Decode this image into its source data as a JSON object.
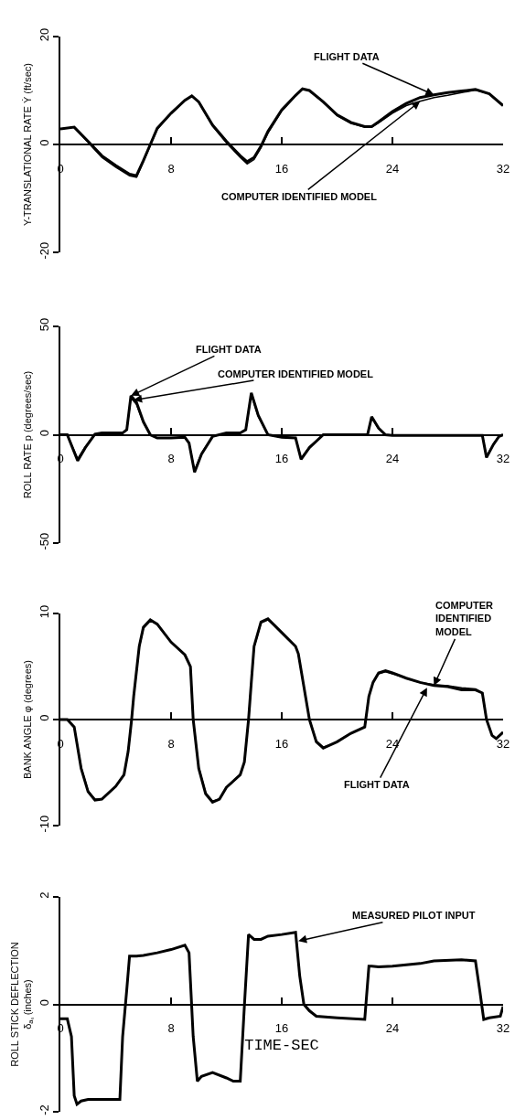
{
  "chart_data": [
    {
      "type": "line",
      "ylabel": "Y-TRANSLATIONAL RATE Ẏ (ft/sec)",
      "xlim": [
        0,
        32
      ],
      "ylim": [
        -20,
        20
      ],
      "xticks": [
        0,
        8,
        16,
        24,
        32
      ],
      "yticks": [
        -20,
        0,
        20
      ],
      "x": [
        0,
        1,
        2,
        3,
        4,
        5,
        5.5,
        6,
        6.5,
        7,
        8,
        9,
        9.5,
        10,
        11,
        12,
        13,
        13.5,
        14,
        14.5,
        15,
        16,
        17,
        17.5,
        18,
        19,
        20,
        21,
        22,
        22.5,
        23,
        24,
        25,
        26,
        27,
        28,
        29,
        30,
        31,
        32
      ],
      "series": [
        {
          "color": "#000000",
          "values": [
            2.9,
            3.2,
            0.6,
            -2.1,
            -3.9,
            -5.5,
            -5.8,
            -3,
            0,
            3,
            5.8,
            8.2,
            9,
            7.9,
            3.6,
            0.6,
            -2.1,
            -3.2,
            -2.4,
            -0.3,
            2.4,
            6.4,
            9.1,
            10.3,
            10,
            7.9,
            5.5,
            4.1,
            3.3,
            3.3,
            4.2,
            6.1,
            7.6,
            8.7,
            9.2,
            9.6,
            9.9,
            10.2,
            9.4,
            7.2
          ]
        },
        {
          "color": "#000000",
          "values": [
            2.9,
            3.2,
            0.4,
            -2.4,
            -4.2,
            -5.8,
            -6.1,
            -3.2,
            -0.2,
            2.8,
            5.7,
            8.1,
            9,
            7.8,
            3.4,
            0.3,
            -2.4,
            -3.6,
            -2.8,
            -0.6,
            2.1,
            6.2,
            9,
            10.2,
            10,
            7.8,
            5.3,
            3.9,
            3.2,
            3.2,
            4,
            5.8,
            7.2,
            8,
            8.7,
            9.1,
            9.6,
            10.1,
            9.4,
            7.2
          ]
        }
      ],
      "annotations": [
        {
          "text": "FLIGHT DATA",
          "x": 27,
          "y": 9.2
        },
        {
          "text": "COMPUTER IDENTIFIED MODEL",
          "x": 26,
          "y": 8
        }
      ]
    },
    {
      "type": "line",
      "ylabel": "ROLL RATE p (degrees/sec)",
      "xlim": [
        0,
        32
      ],
      "ylim": [
        -50,
        50
      ],
      "xticks": [
        0,
        8,
        16,
        24,
        32
      ],
      "yticks": [
        -50,
        0,
        50
      ],
      "x": [
        0,
        0.5,
        1.25,
        1.8,
        2.5,
        3,
        4,
        4.5,
        4.8,
        5.1,
        5.5,
        6,
        6.5,
        7,
        8,
        9,
        9.3,
        9.7,
        10.2,
        11,
        12,
        13,
        13.4,
        13.8,
        14.3,
        15,
        16,
        17,
        17.4,
        18,
        19,
        22,
        22.2,
        22.5,
        23,
        23.5,
        24,
        30,
        30.5,
        30.8,
        31.3,
        31.7,
        32
      ],
      "series": [
        {
          "color": "#000000",
          "values": [
            0,
            0,
            -12,
            -6,
            0.3,
            0.8,
            0.8,
            0.8,
            2.3,
            18,
            15,
            6,
            0,
            -1.5,
            -1.5,
            -1.2,
            -3.8,
            -17.3,
            -9,
            -0.8,
            0.8,
            0.8,
            2.3,
            19.3,
            9,
            0,
            -1.2,
            -1.5,
            -11.3,
            -6,
            0,
            0,
            0,
            8.3,
            3,
            0,
            -0.3,
            -0.3,
            -0.3,
            -10.5,
            -4.5,
            -0.8,
            0
          ]
        },
        {
          "color": "#000000",
          "values": [
            0,
            0,
            -11,
            -5.5,
            0.3,
            0.8,
            0.8,
            0.8,
            2.3,
            17,
            14,
            5.5,
            0,
            -1.5,
            -1.5,
            -1.2,
            -3.8,
            -16.5,
            -8.5,
            -0.8,
            0.8,
            0.8,
            2.3,
            18.5,
            8.5,
            0,
            -1.2,
            -1.5,
            -10.8,
            -5.5,
            0,
            0,
            0,
            7.8,
            2.8,
            0,
            -0.3,
            -0.3,
            -0.3,
            -10,
            -4.2,
            -0.8,
            0
          ]
        }
      ],
      "annotations": [
        {
          "text": "FLIGHT DATA",
          "x": 5.1,
          "y": 18
        },
        {
          "text": "COMPUTER IDENTIFIED MODEL",
          "x": 5.3,
          "y": 16
        }
      ]
    },
    {
      "type": "line",
      "ylabel": "BANK ANGLE φ (degrees)",
      "xlim": [
        0,
        32
      ],
      "ylim": [
        -10,
        10
      ],
      "xticks": [
        0,
        8,
        16,
        24,
        32
      ],
      "yticks": [
        -10,
        0,
        10
      ],
      "x": [
        0,
        0.5,
        1,
        1.5,
        2,
        2.5,
        3,
        4,
        4.6,
        4.9,
        5.15,
        5.3,
        5.7,
        6,
        6.5,
        7,
        8,
        9,
        9.4,
        9.6,
        10,
        10.5,
        11,
        11.5,
        12,
        13,
        13.3,
        13.6,
        13.8,
        14,
        14.5,
        15,
        16,
        17,
        17.2,
        17.6,
        18,
        18.5,
        19,
        20,
        21,
        22,
        22.3,
        22.6,
        23,
        23.5,
        24,
        25,
        26,
        27,
        28,
        29,
        30,
        30.5,
        30.8,
        31.2,
        31.5,
        32
      ],
      "series": [
        {
          "color": "#000000",
          "values": [
            0,
            0,
            -0.7,
            -4.6,
            -6.8,
            -7.6,
            -7.5,
            -6.3,
            -5.2,
            -3,
            0,
            2.2,
            6.9,
            8.7,
            9.4,
            9,
            7.3,
            6.1,
            5,
            0,
            -4.6,
            -7,
            -7.8,
            -7.5,
            -6.4,
            -5.2,
            -4,
            0,
            3.5,
            6.9,
            9.2,
            9.5,
            8.2,
            6.9,
            6.2,
            3.1,
            0,
            -2.1,
            -2.7,
            -2.1,
            -1.3,
            -0.7,
            2.2,
            3.5,
            4.4,
            4.6,
            4.4,
            3.9,
            3.5,
            3.2,
            3.1,
            2.8,
            2.8,
            2.5,
            0,
            -1.5,
            -1.8,
            -1.2
          ]
        },
        {
          "color": "#000000",
          "values": [
            0,
            0,
            -0.7,
            -4.5,
            -6.7,
            -7.5,
            -7.5,
            -6.3,
            -5.2,
            -3,
            0,
            2.2,
            6.8,
            8.6,
            9.3,
            9,
            7.3,
            6.1,
            5,
            0,
            -4.5,
            -6.9,
            -7.7,
            -7.5,
            -6.4,
            -5.2,
            -4,
            0,
            3.5,
            6.8,
            9.1,
            9.4,
            8.2,
            6.9,
            6.2,
            3.1,
            0,
            -2,
            -2.6,
            -2.1,
            -1.3,
            -0.7,
            2.2,
            3.5,
            4.3,
            4.5,
            4.3,
            3.9,
            3.5,
            3.3,
            3.2,
            3,
            2.9,
            2.5,
            0,
            -1.5,
            -1.8,
            -1.2
          ]
        }
      ],
      "annotations": [
        {
          "text": "COMPUTER\nIDENTIFIED\nMODEL",
          "x": 27,
          "y": 3.2
        },
        {
          "text": "FLIGHT DATA",
          "x": 26.5,
          "y": 3
        }
      ]
    },
    {
      "type": "line",
      "ylabel": "ROLL STICK DEFLECTION\nδ$_{aₛ}$ (inches)",
      "xlabel": "TIME-SEC",
      "xlim": [
        0,
        32
      ],
      "ylim": [
        -2,
        2
      ],
      "xticks": [
        0,
        8,
        16,
        24,
        32
      ],
      "yticks": [
        -2,
        0,
        2
      ],
      "x": [
        0,
        0.5,
        0.8,
        1,
        1.2,
        1.5,
        2,
        3,
        4,
        4.3,
        4.5,
        4.8,
        5,
        5.5,
        6,
        7,
        8,
        9,
        9.3,
        9.6,
        9.9,
        10.2,
        11,
        12,
        12.5,
        13,
        13.3,
        13.6,
        14,
        14.5,
        15,
        16,
        17,
        17.3,
        17.6,
        18,
        18.5,
        20,
        22,
        22.3,
        22.5,
        23,
        24,
        26,
        27,
        29,
        30,
        30.3,
        30.6,
        31,
        31.8,
        32
      ],
      "series": [
        {
          "color": "#000000",
          "values": [
            -0.27,
            -0.27,
            -0.6,
            -1.7,
            -1.86,
            -1.8,
            -1.77,
            -1.77,
            -1.77,
            -1.77,
            -0.6,
            0.28,
            0.9,
            0.9,
            0.91,
            0.96,
            1.02,
            1.1,
            0.96,
            -0.6,
            -1.43,
            -1.34,
            -1.27,
            -1.37,
            -1.43,
            -1.43,
            -0.03,
            1.3,
            1.21,
            1.21,
            1.27,
            1.3,
            1.34,
            0.53,
            0,
            -0.12,
            -0.22,
            -0.25,
            -0.28,
            0.71,
            0.71,
            0.7,
            0.71,
            0.76,
            0.81,
            0.83,
            0.81,
            0.28,
            -0.28,
            -0.25,
            -0.22,
            -0.04
          ]
        }
      ],
      "annotations": [
        {
          "text": "MEASURED PILOT INPUT",
          "x": 17.2,
          "y": 1.18
        }
      ]
    }
  ]
}
